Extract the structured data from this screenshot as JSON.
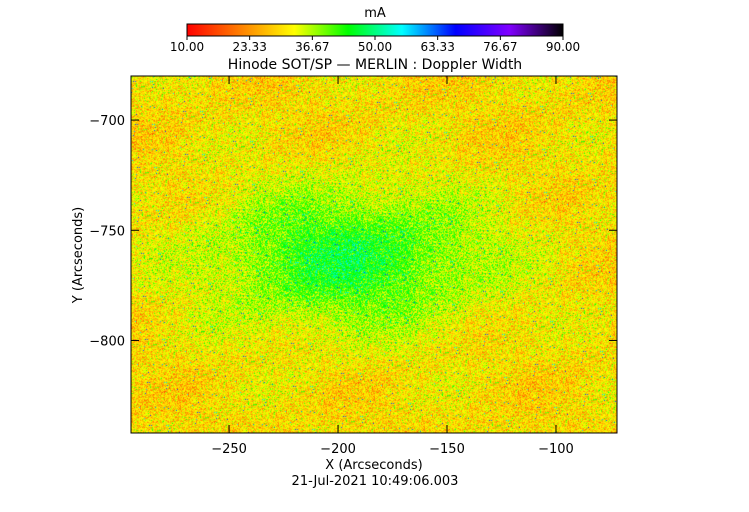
{
  "chart_data": {
    "type": "heatmap",
    "title": "Hinode SOT/SP — MERLIN : Doppler Width",
    "xlabel": "X (Arcseconds)",
    "ylabel": "Y (Arcseconds)",
    "xlim": [
      -295,
      -72
    ],
    "ylim": [
      -842,
      -680
    ],
    "x_ticks": [
      -250,
      -200,
      -150,
      -100
    ],
    "x_tick_labels": [
      "−250",
      "−200",
      "−150",
      "−100"
    ],
    "y_ticks": [
      -700,
      -750,
      -800
    ],
    "y_tick_labels": [
      "−700",
      "−750",
      "−800"
    ],
    "colorbar": {
      "unit": "mA",
      "min": 10.0,
      "max": 90.0,
      "tick_values": [
        10.0,
        23.33,
        36.67,
        50.0,
        63.33,
        76.67,
        90.0
      ],
      "tick_labels": [
        "10.00",
        "23.33",
        "36.67",
        "50.00",
        "63.33",
        "76.67",
        "90.00"
      ],
      "colormap": [
        "#ff0000",
        "#ff8000",
        "#ffff00",
        "#00ff00",
        "#00ffff",
        "#0000ff",
        "#8000ff",
        "#000000"
      ]
    },
    "field_summary": {
      "dominant_range_mA": [
        18,
        55
      ],
      "background_mean_mA": 30,
      "enhanced_region": {
        "x_range": [
          -240,
          -150
        ],
        "y_range": [
          -780,
          -745
        ],
        "mean_mA": 45
      }
    },
    "timestamp": "21-Jul-2021 10:49:06.003"
  }
}
